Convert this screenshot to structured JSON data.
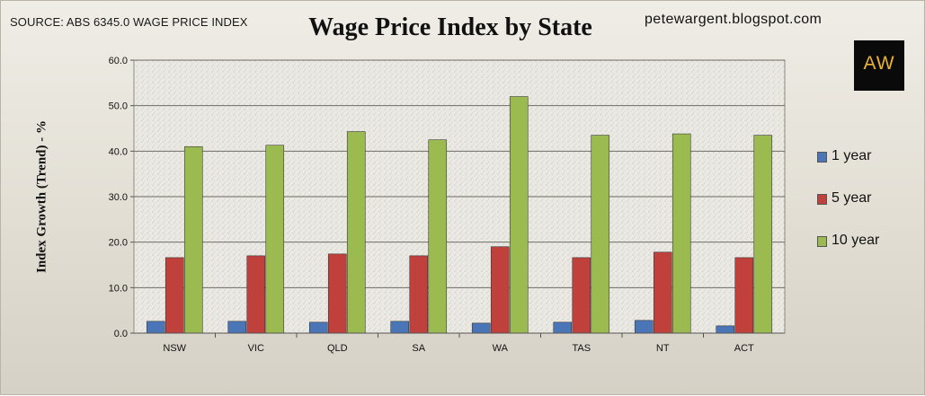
{
  "header": {
    "source": "SOURCE: ABS 6345.0 WAGE PRICE INDEX",
    "title": "Wage Price Index by State",
    "site": "petewargent.blogspot.com",
    "logo_text": "AW"
  },
  "chart_data": {
    "type": "bar",
    "title": "Wage Price Index by State",
    "xlabel": "",
    "ylabel": "Index Growth (Trend) - %",
    "ylim": [
      0,
      60
    ],
    "yticks": [
      "0.0",
      "10.0",
      "20.0",
      "30.0",
      "40.0",
      "50.0",
      "60.0"
    ],
    "grid": true,
    "legend_position": "right",
    "categories": [
      "NSW",
      "VIC",
      "QLD",
      "SA",
      "WA",
      "TAS",
      "NT",
      "ACT"
    ],
    "series": [
      {
        "name": "1 year",
        "color": "#4a76b8",
        "values": [
          2.6,
          2.6,
          2.4,
          2.6,
          2.2,
          2.4,
          2.8,
          1.6
        ]
      },
      {
        "name": "5 year",
        "color": "#c0403c",
        "values": [
          16.6,
          17.0,
          17.4,
          17.0,
          19.0,
          16.6,
          17.8,
          16.6
        ]
      },
      {
        "name": "10 year",
        "color": "#9bbb50",
        "values": [
          41.0,
          41.3,
          44.3,
          42.5,
          52.0,
          43.5,
          43.8,
          43.5
        ]
      }
    ]
  }
}
